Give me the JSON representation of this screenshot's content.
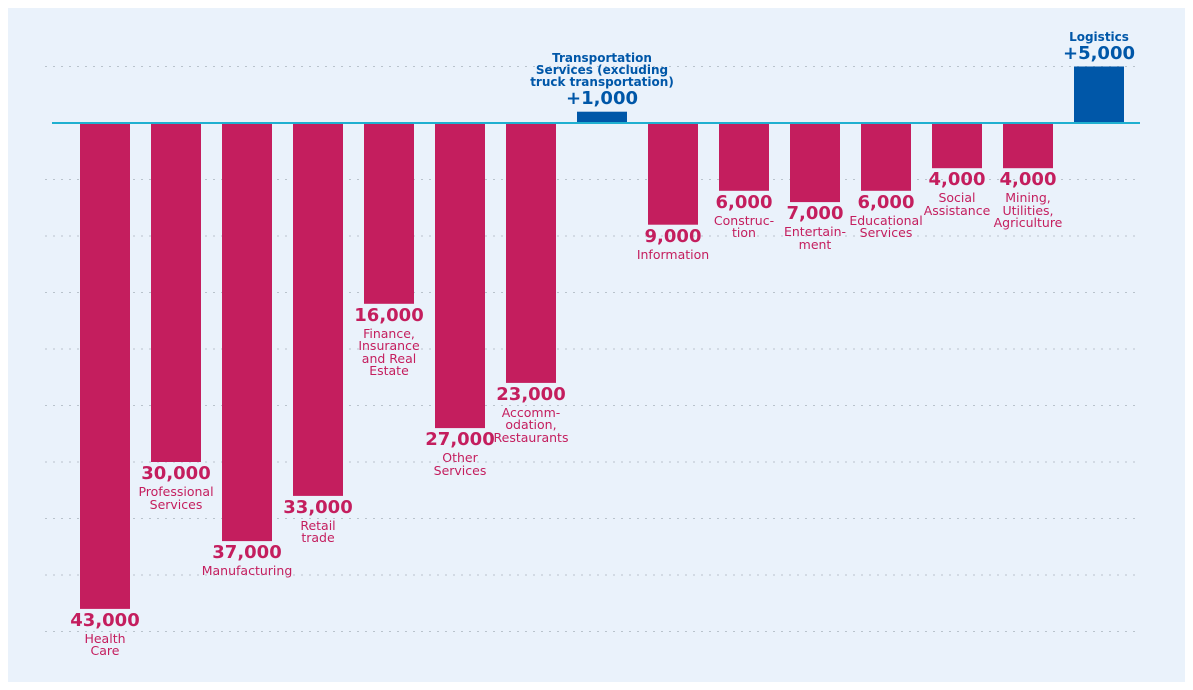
{
  "chart_data": {
    "type": "bar",
    "categories": [
      "Health\nCare",
      "Professional\nServices",
      "Manufacturing",
      "Retail\ntrade",
      "Finance,\nInsurance\nand Real\nEstate",
      "Other\nServices",
      "Accomm-\nodation,\nRestaurants",
      "Transportation\nServices (excluding\ntruck transportation)",
      "Information",
      "Construc-\ntion",
      "Entertain-\nment",
      "Educational\nServices",
      "Social\nAssistance",
      "Mining,\nUtilities,\nAgriculture",
      "Logistics"
    ],
    "values": [
      -43000,
      -30000,
      -37000,
      -33000,
      -16000,
      -27000,
      -23000,
      1000,
      -9000,
      -6000,
      -7000,
      -6000,
      -4000,
      -4000,
      5000
    ],
    "value_labels": [
      "43,000",
      "30,000",
      "37,000",
      "33,000",
      "16,000",
      "27,000",
      "23,000",
      "+1,000",
      "9,000",
      "6,000",
      "7,000",
      "6,000",
      "4,000",
      "4,000",
      "+5,000"
    ],
    "colors": [
      "#c41e5e",
      "#c41e5e",
      "#c41e5e",
      "#c41e5e",
      "#c41e5e",
      "#c41e5e",
      "#c41e5e",
      "#0057a8",
      "#c41e5e",
      "#c41e5e",
      "#c41e5e",
      "#c41e5e",
      "#c41e5e",
      "#c41e5e",
      "#0057a8"
    ],
    "ylim": [
      -50000,
      10000
    ],
    "yticks": [
      -45000,
      -40000,
      -35000,
      -30000,
      -25000,
      -20000,
      -15000,
      -10000,
      -5000,
      0,
      5000
    ],
    "grid": true
  }
}
